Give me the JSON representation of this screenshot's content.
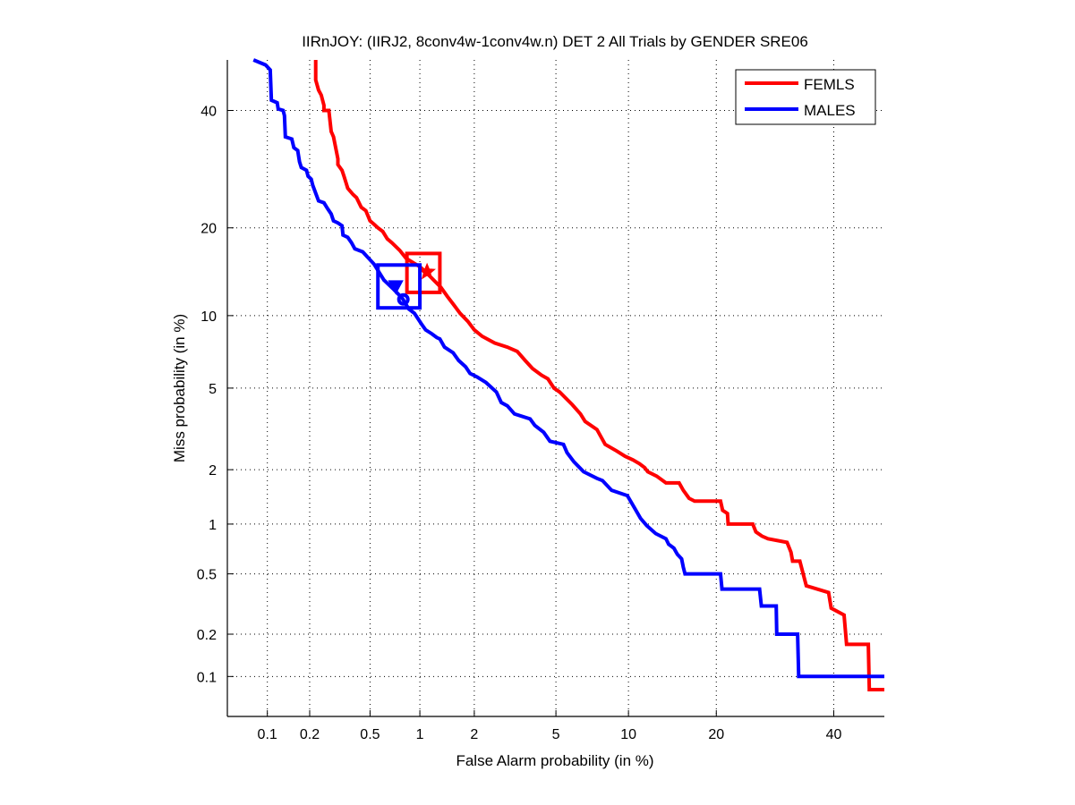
{
  "chart_data": {
    "type": "line",
    "title": "IIRnJOY: (IIRJ2, 8conv4w-1conv4w.n) DET 2 All Trials by GENDER SRE06",
    "xlabel": "False Alarm probability (in %)",
    "ylabel": "Miss probability (in %)",
    "scale": "normal-deviate",
    "xlim": [
      0.05,
      50
    ],
    "ylim": [
      0.05,
      50
    ],
    "xticks": [
      0.1,
      0.2,
      0.5,
      1,
      2,
      5,
      10,
      20,
      40
    ],
    "xtick_labels": [
      "0.1",
      "0.2",
      "0.5",
      "1",
      "2",
      "5",
      "10",
      "20",
      "40"
    ],
    "yticks": [
      0.1,
      0.2,
      0.5,
      1,
      2,
      5,
      10,
      20,
      40
    ],
    "ytick_labels": [
      "0.1",
      "0.2",
      "0.5",
      "1",
      "2",
      "5",
      "10",
      "20",
      "40"
    ],
    "grid": true,
    "legend_position": "top-right",
    "series": [
      {
        "name": "FEMLS",
        "color": "#ff0000",
        "points": [
          [
            0.22,
            50
          ],
          [
            0.22,
            46
          ],
          [
            0.23,
            44
          ],
          [
            0.24,
            43
          ],
          [
            0.25,
            41
          ],
          [
            0.25,
            40
          ],
          [
            0.27,
            40
          ],
          [
            0.28,
            36
          ],
          [
            0.29,
            35
          ],
          [
            0.31,
            31
          ],
          [
            0.31,
            30
          ],
          [
            0.33,
            29
          ],
          [
            0.34,
            28
          ],
          [
            0.35,
            27
          ],
          [
            0.36,
            26
          ],
          [
            0.39,
            25
          ],
          [
            0.41,
            24.5
          ],
          [
            0.44,
            23
          ],
          [
            0.47,
            22.5
          ],
          [
            0.5,
            21
          ],
          [
            0.53,
            20.5
          ],
          [
            0.56,
            20
          ],
          [
            0.6,
            19.5
          ],
          [
            0.64,
            18.5
          ],
          [
            0.68,
            18
          ],
          [
            0.76,
            17
          ],
          [
            0.83,
            16
          ],
          [
            0.91,
            15.5
          ],
          [
            1.0,
            15
          ],
          [
            1.08,
            14.4
          ],
          [
            1.2,
            13.5
          ],
          [
            1.32,
            12.7
          ],
          [
            1.43,
            11.8
          ],
          [
            1.55,
            11
          ],
          [
            1.68,
            10.2
          ],
          [
            1.85,
            9.5
          ],
          [
            2.0,
            8.8
          ],
          [
            2.2,
            8.3
          ],
          [
            2.55,
            7.8
          ],
          [
            2.95,
            7.5
          ],
          [
            3.3,
            7.2
          ],
          [
            3.6,
            6.6
          ],
          [
            3.9,
            6.1
          ],
          [
            4.3,
            5.7
          ],
          [
            4.6,
            5.5
          ],
          [
            4.9,
            5
          ],
          [
            5.2,
            4.8
          ],
          [
            5.9,
            4.2
          ],
          [
            6.4,
            3.8
          ],
          [
            6.7,
            3.5
          ],
          [
            7.5,
            3.2
          ],
          [
            8.1,
            2.7
          ],
          [
            9.0,
            2.5
          ],
          [
            9.7,
            2.35
          ],
          [
            10.4,
            2.25
          ],
          [
            11,
            2.15
          ],
          [
            11.5,
            2.05
          ],
          [
            11.8,
            1.95
          ],
          [
            12.7,
            1.85
          ],
          [
            13.7,
            1.7
          ],
          [
            15.2,
            1.7
          ],
          [
            15.7,
            1.55
          ],
          [
            16.4,
            1.4
          ],
          [
            17.1,
            1.35
          ],
          [
            20.6,
            1.35
          ],
          [
            20.9,
            1.2
          ],
          [
            21.6,
            1.15
          ],
          [
            21.7,
            1.0
          ],
          [
            25.5,
            1.0
          ],
          [
            26,
            0.9
          ],
          [
            27,
            0.85
          ],
          [
            28,
            0.82
          ],
          [
            31.3,
            0.78
          ],
          [
            32,
            0.68
          ],
          [
            32.3,
            0.6
          ],
          [
            33.6,
            0.6
          ],
          [
            34.8,
            0.42
          ],
          [
            39,
            0.38
          ],
          [
            39.5,
            0.3
          ],
          [
            42,
            0.27
          ],
          [
            42.5,
            0.17
          ],
          [
            46.8,
            0.17
          ],
          [
            47,
            0.08
          ],
          [
            50,
            0.08
          ]
        ]
      },
      {
        "name": "MALES",
        "color": "#0000ff",
        "points": [
          [
            0.079,
            50
          ],
          [
            0.097,
            49
          ],
          [
            0.105,
            48
          ],
          [
            0.107,
            42
          ],
          [
            0.118,
            41.5
          ],
          [
            0.12,
            40.3
          ],
          [
            0.13,
            40
          ],
          [
            0.133,
            39
          ],
          [
            0.135,
            35
          ],
          [
            0.15,
            34.6
          ],
          [
            0.155,
            33
          ],
          [
            0.165,
            32.5
          ],
          [
            0.17,
            30.5
          ],
          [
            0.175,
            29.5
          ],
          [
            0.19,
            29
          ],
          [
            0.195,
            28
          ],
          [
            0.205,
            27.5
          ],
          [
            0.21,
            26.5
          ],
          [
            0.23,
            24
          ],
          [
            0.25,
            23.7
          ],
          [
            0.265,
            22.8
          ],
          [
            0.28,
            22
          ],
          [
            0.29,
            21
          ],
          [
            0.31,
            20.7
          ],
          [
            0.33,
            20.3
          ],
          [
            0.335,
            19
          ],
          [
            0.36,
            18.7
          ],
          [
            0.38,
            18
          ],
          [
            0.4,
            17.2
          ],
          [
            0.45,
            16.8
          ],
          [
            0.49,
            16
          ],
          [
            0.53,
            15.3
          ],
          [
            0.61,
            13.5
          ],
          [
            0.7,
            12.5
          ],
          [
            0.79,
            11.6
          ],
          [
            0.86,
            10.6
          ],
          [
            0.93,
            10.2
          ],
          [
            1.02,
            9.3
          ],
          [
            1.08,
            8.8
          ],
          [
            1.17,
            8.5
          ],
          [
            1.25,
            8.2
          ],
          [
            1.3,
            8.1
          ],
          [
            1.38,
            7.5
          ],
          [
            1.54,
            7.1
          ],
          [
            1.65,
            6.6
          ],
          [
            1.8,
            6.2
          ],
          [
            1.9,
            5.8
          ],
          [
            2.07,
            5.6
          ],
          [
            2.3,
            5.3
          ],
          [
            2.6,
            4.8
          ],
          [
            2.75,
            4.3
          ],
          [
            2.95,
            4.15
          ],
          [
            3.2,
            3.8
          ],
          [
            3.8,
            3.6
          ],
          [
            4.0,
            3.35
          ],
          [
            4.4,
            3.1
          ],
          [
            4.7,
            2.8
          ],
          [
            5.4,
            2.7
          ],
          [
            5.6,
            2.45
          ],
          [
            6.0,
            2.2
          ],
          [
            6.6,
            1.95
          ],
          [
            7.5,
            1.8
          ],
          [
            7.9,
            1.75
          ],
          [
            8.6,
            1.55
          ],
          [
            9.9,
            1.45
          ],
          [
            10.5,
            1.25
          ],
          [
            11.1,
            1.08
          ],
          [
            11.7,
            0.98
          ],
          [
            12.6,
            0.88
          ],
          [
            13.7,
            0.82
          ],
          [
            14.0,
            0.76
          ],
          [
            14.6,
            0.72
          ],
          [
            15,
            0.66
          ],
          [
            15.5,
            0.62
          ],
          [
            15.7,
            0.55
          ],
          [
            15.9,
            0.5
          ],
          [
            20.6,
            0.5
          ],
          [
            20.8,
            0.4
          ],
          [
            26.6,
            0.4
          ],
          [
            26.9,
            0.31
          ],
          [
            29.4,
            0.31
          ],
          [
            29.5,
            0.2
          ],
          [
            33.2,
            0.2
          ],
          [
            33.4,
            0.1
          ],
          [
            50,
            0.1
          ]
        ]
      }
    ],
    "operating_points": [
      {
        "series": "FEMLS",
        "type": "box",
        "fa_range": [
          0.84,
          1.3
        ],
        "miss_range": [
          12.2,
          16.6
        ],
        "marker_fa": 1.1,
        "marker_miss": 14.4,
        "marker": "star"
      },
      {
        "series": "MALES",
        "type": "box",
        "fa_range": [
          0.56,
          1.0
        ],
        "miss_range": [
          10.7,
          15.2
        ],
        "marker_fa": 0.72,
        "marker_miss": 12.8,
        "marker": "triangle",
        "second_marker_fa": 0.8,
        "second_marker_miss": 11.5,
        "second_marker": "circle"
      }
    ]
  }
}
